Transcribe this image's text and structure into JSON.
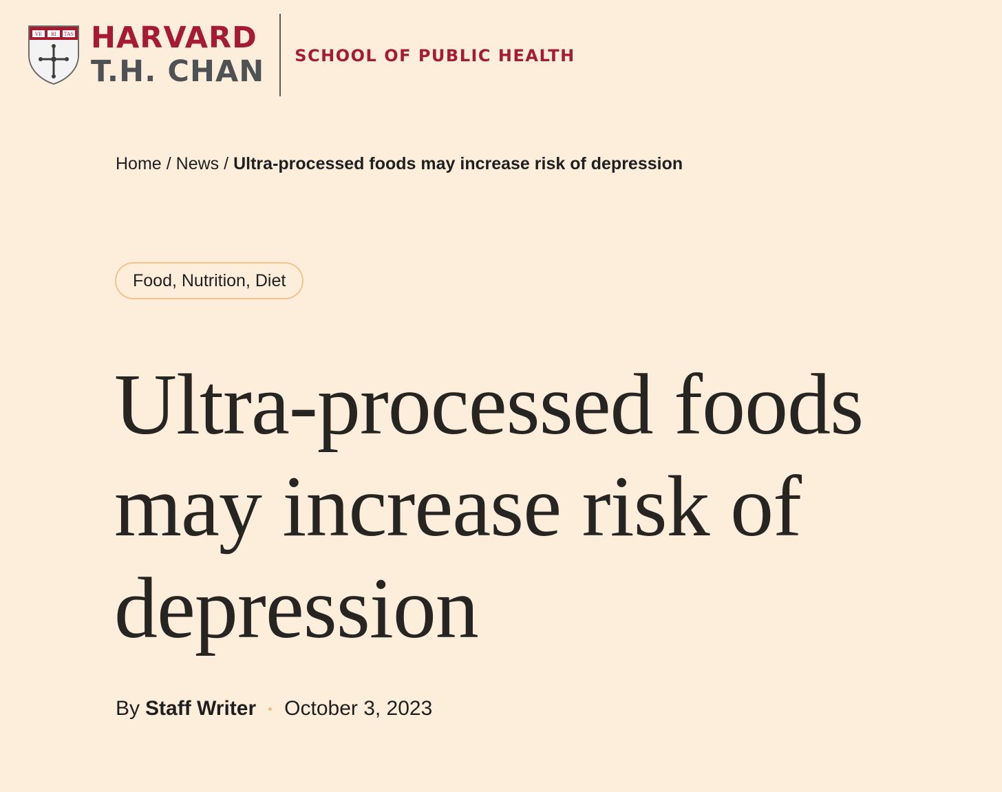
{
  "header": {
    "wordmark_line1": "HARVARD",
    "wordmark_line2": "T.H. CHAN",
    "school_name": "SCHOOL OF PUBLIC HEALTH",
    "shield_motto": [
      "VE",
      "RI",
      "TAS"
    ],
    "colors": {
      "crimson": "#a51c30",
      "gray": "#4f5254"
    }
  },
  "breadcrumb": {
    "items": [
      "Home",
      "News",
      "Ultra-processed foods may increase risk of depression"
    ],
    "separator": "/"
  },
  "tag": {
    "label": "Food, Nutrition, Diet"
  },
  "article": {
    "title": "Ultra-processed foods may increase risk of depression",
    "byline_prefix": "By",
    "author": "Staff Writer",
    "date": "October 3, 2023"
  },
  "colors": {
    "background": "#fdeedb",
    "tag_border": "#f2c48d",
    "text": "#1f1f1f"
  }
}
